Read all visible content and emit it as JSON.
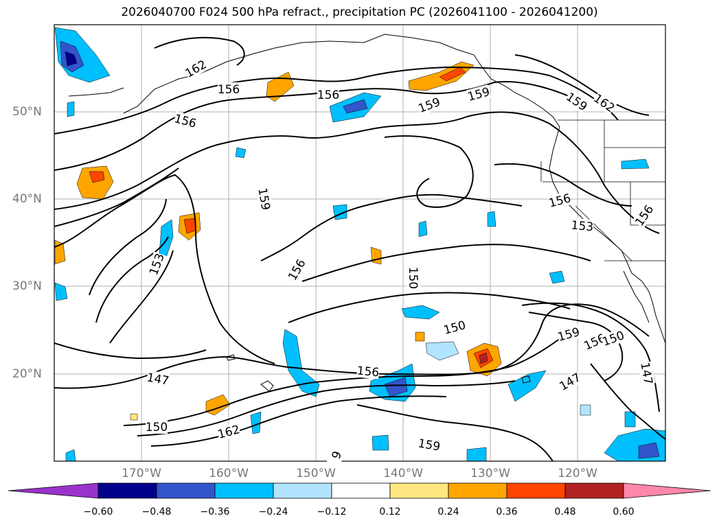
{
  "title": "2026040700 F024 500 hPa refract., precipitation PC (2026041100 - 2026041200)",
  "lon_labels": [
    "170°W",
    "160°W",
    "150°W",
    "140°W",
    "130°W",
    "120°W"
  ],
  "lat_labels": [
    "50°N",
    "40°N",
    "30°N",
    "20°N"
  ],
  "contour_labels": [
    "162",
    "156",
    "156",
    "156",
    "159",
    "159",
    "162",
    "159",
    "159",
    "156",
    "153",
    "156",
    "153",
    "156",
    "150",
    "150",
    "159",
    "156",
    "150",
    "147",
    "147",
    "156",
    "147",
    "150",
    "162",
    "159",
    "9"
  ],
  "colorbar": {
    "ticks": [
      "−0.60",
      "−0.48",
      "−0.36",
      "−0.24",
      "−0.12",
      "0.12",
      "0.24",
      "0.36",
      "0.48",
      "0.60"
    ],
    "colors": [
      "#9933cc",
      "#00008b",
      "#3355cc",
      "#00bfff",
      "#b0e4ff",
      "#ffffff",
      "#ffe680",
      "#ffa500",
      "#ff4500",
      "#b22222",
      "#ff88aa"
    ]
  }
}
